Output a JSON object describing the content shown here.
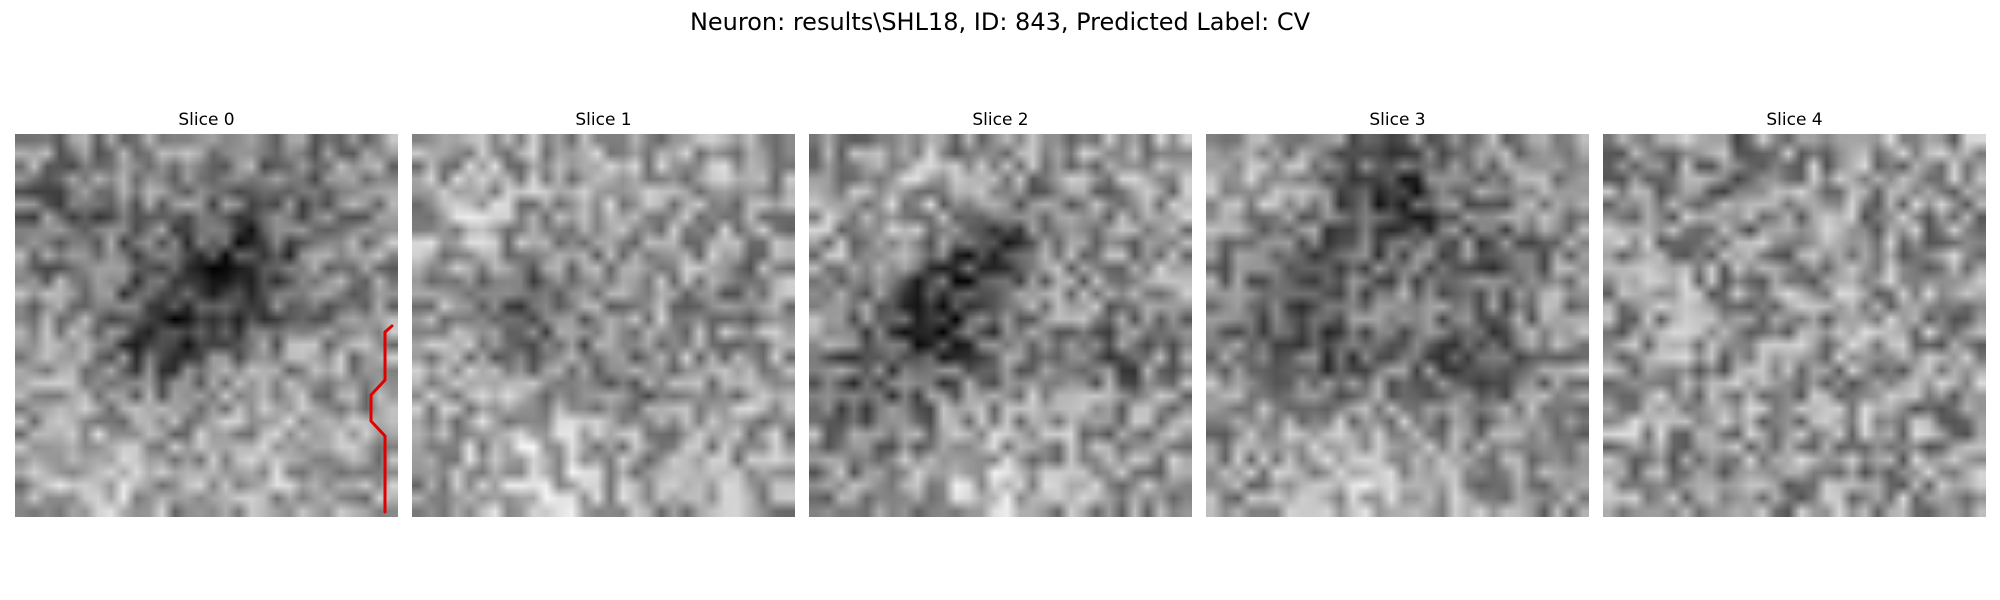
{
  "figure": {
    "title": "Neuron: results\\SHL18, ID: 843, Predicted Label: CV"
  },
  "colors": {
    "colormap": "gray",
    "trace": "#e00000",
    "background": "#ffffff"
  },
  "panels": [
    {
      "title": "Slice 0"
    },
    {
      "title": "Slice 1"
    },
    {
      "title": "Slice 2"
    },
    {
      "title": "Slice 3"
    },
    {
      "title": "Slice 4"
    }
  ]
}
